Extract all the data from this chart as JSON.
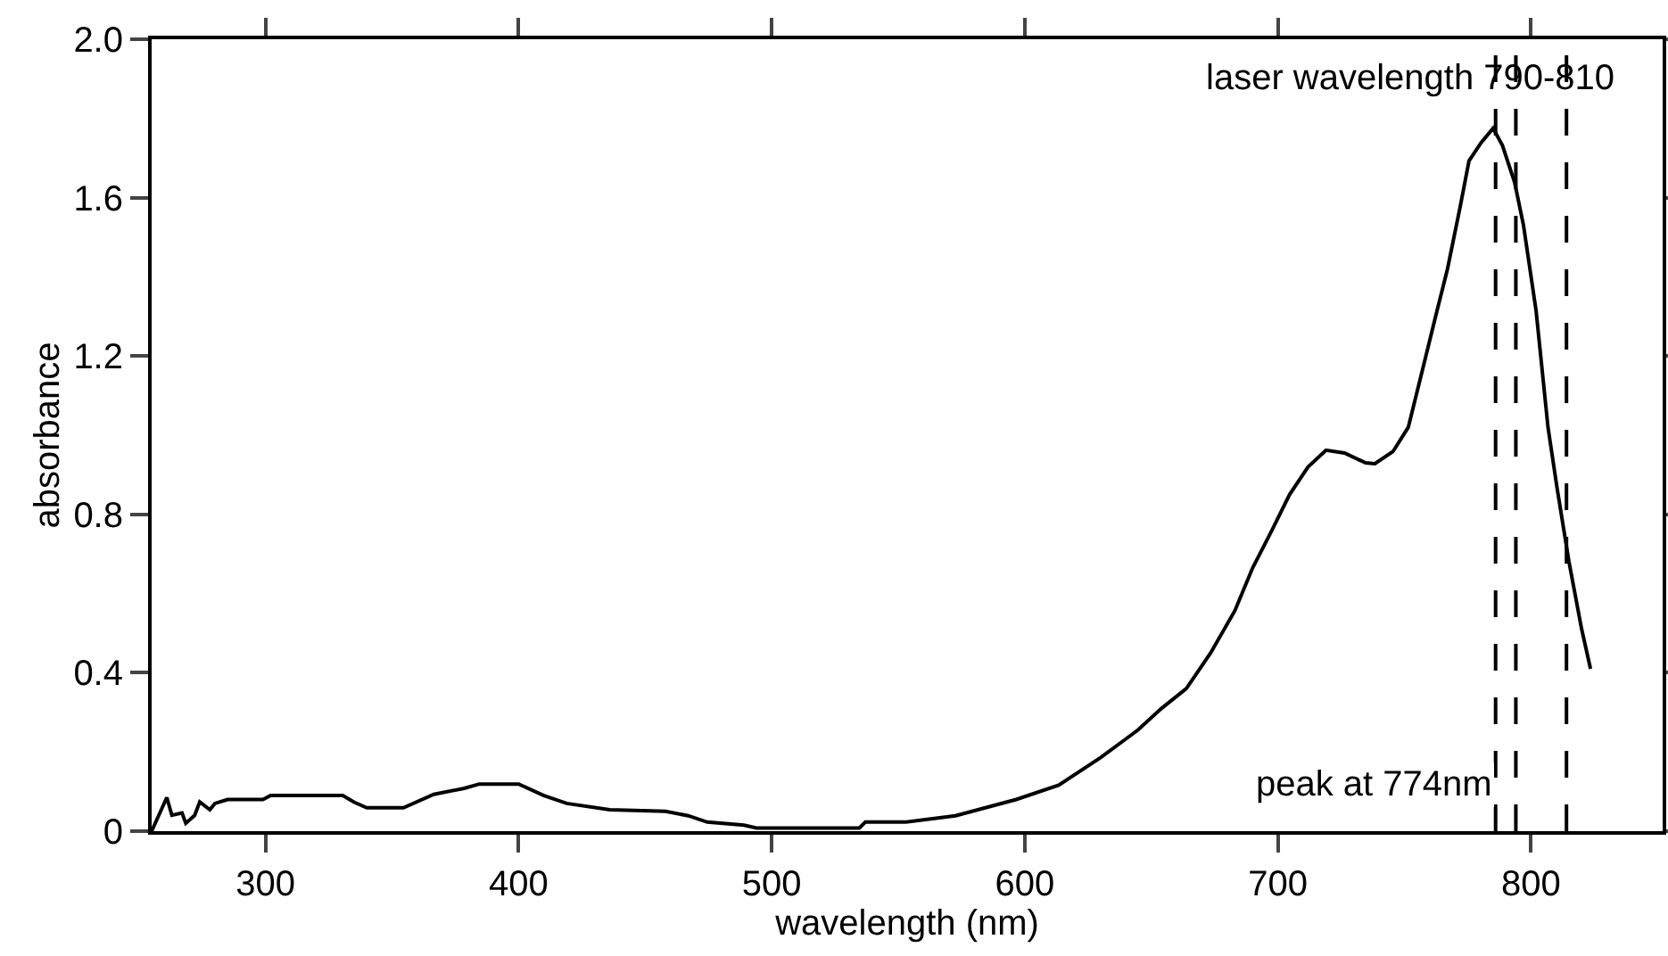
{
  "chart_data": {
    "type": "line",
    "xlabel": "wavelength (nm)",
    "ylabel": "absorbance",
    "x": [
      255,
      261,
      263,
      267,
      268.5,
      272,
      274,
      278,
      280,
      285,
      299,
      302,
      330.5,
      335,
      340,
      354.5,
      366.5,
      378.5,
      384.5,
      400,
      410,
      419,
      436,
      458,
      467,
      474.5,
      489,
      494,
      534.6,
      537,
      553,
      572.6,
      596.6,
      613.4,
      630,
      644.6,
      654,
      663.8,
      673.4,
      683,
      690,
      697.5,
      704.6,
      711.9,
      719,
      726.3,
      734.7,
      738.3,
      745.5,
      751.5,
      757.5,
      762.3,
      767,
      772,
      775.5,
      780.3,
      785,
      788.7,
      793.5,
      797,
      802,
      806.7,
      810.3,
      815,
      820,
      823.5
    ],
    "series": [
      {
        "color": "#000000",
        "values": [
          0,
          0.085,
          0.04,
          0.046,
          0.02,
          0.04,
          0.074,
          0.054,
          0.07,
          0.08,
          0.08,
          0.09,
          0.09,
          0.073,
          0.059,
          0.059,
          0.093,
          0.108,
          0.119,
          0.119,
          0.09,
          0.07,
          0.054,
          0.05,
          0.039,
          0.023,
          0.015,
          0.008,
          0.008,
          0.023,
          0.023,
          0.039,
          0.08,
          0.116,
          0.186,
          0.255,
          0.31,
          0.36,
          0.45,
          0.557,
          0.665,
          0.758,
          0.85,
          0.92,
          0.962,
          0.955,
          0.93,
          0.928,
          0.959,
          1.02,
          1.175,
          1.3,
          1.42,
          1.577,
          1.693,
          1.739,
          1.775,
          1.732,
          1.639,
          1.531,
          1.314,
          1.02,
          0.866,
          0.68,
          0.51,
          0.41
        ]
      }
    ],
    "xlim": [
      255,
      852
    ],
    "xticks": [
      300,
      400,
      500,
      600,
      700,
      800
    ],
    "ylim": [
      0,
      2
    ],
    "yticks": [
      0,
      0.4,
      0.8,
      1.2,
      1.6,
      {
        "value": 2,
        "label": "2.0"
      }
    ],
    "ref_lines": [
      {
        "axis": "x",
        "value": 786,
        "label": "peak at 774nm",
        "line_style": "dashed",
        "color": "#000000"
      },
      {
        "axis": "x",
        "value": 794,
        "line_style": "dashed",
        "color": "#000000"
      },
      {
        "axis": "x",
        "value": 814,
        "line_style": "dashed",
        "color": "#000000"
      }
    ],
    "annotations": [
      "laser wavelength 790-810"
    ],
    "marker": "none",
    "line_style": "solid"
  }
}
